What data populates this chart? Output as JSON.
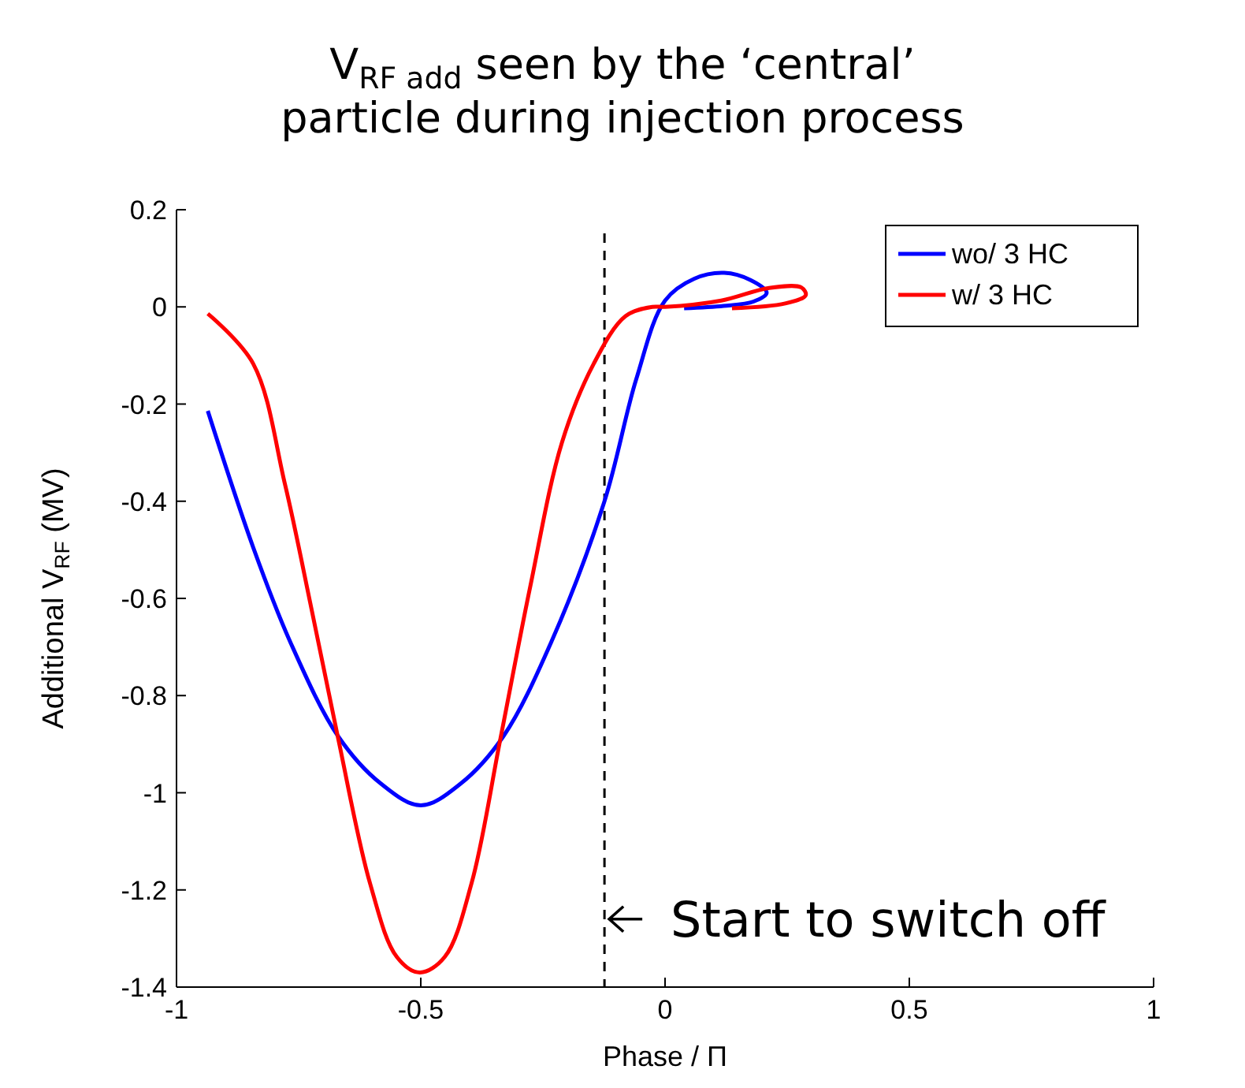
{
  "chart_data": {
    "type": "line",
    "title": "V$_{RF add}$ seen by the ‘central’\nparticle during injection process",
    "xlabel": "Phase / Π",
    "ylabel": "Additional V$_{RF}$ (MV)",
    "xlim": [
      -1,
      1
    ],
    "xticks": [
      -1,
      -0.5,
      0,
      0.5,
      1
    ],
    "ylim": [
      -1.4,
      0.2
    ],
    "yticks": [
      -1.4,
      -1.2,
      -1,
      -0.8,
      -0.6,
      -0.4,
      -0.2,
      0,
      0.2
    ],
    "series": [
      {
        "name": "wo/ 3 HC",
        "color": "#0000ff",
        "x": [
          -0.936,
          -0.843,
          -0.767,
          -0.669,
          -0.582,
          -0.5,
          -0.418,
          -0.331,
          -0.233,
          -0.124,
          -0.059,
          0,
          0.06,
          0.121,
          0.175,
          0.208,
          0.181,
          0.12,
          0.039
        ],
        "values": [
          -0.214,
          -0.495,
          -0.69,
          -0.884,
          -0.981,
          -1.026,
          -0.981,
          -0.884,
          -0.69,
          -0.4,
          -0.149,
          0.013,
          0.058,
          0.07,
          0.055,
          0.029,
          0.011,
          0.002,
          -0.003
        ]
      },
      {
        "name": "w/ 3 HC",
        "color": "#ff0000",
        "x": [
          -0.936,
          -0.843,
          -0.778,
          -0.723,
          -0.669,
          -0.604,
          -0.549,
          -0.502,
          -0.451,
          -0.396,
          -0.337,
          -0.277,
          -0.211,
          -0.146,
          -0.081,
          -0.026,
          0,
          0.115,
          0.213,
          0.279,
          0.288,
          0.246,
          0.137
        ],
        "values": [
          -0.014,
          -0.117,
          -0.365,
          -0.625,
          -0.889,
          -1.186,
          -1.338,
          -1.37,
          -1.338,
          -1.186,
          -0.889,
          -0.581,
          -0.279,
          -0.117,
          -0.019,
          0,
          0,
          0.013,
          0.039,
          0.04,
          0.024,
          0.007,
          -0.003
        ]
      }
    ],
    "ref_lines": [
      {
        "axis": "x",
        "value": -0.124,
        "color": "#000000",
        "line_style": "dashed"
      }
    ],
    "annotations": [
      {
        "text": "Start to switch off",
        "x": -0.124,
        "y": -1.26
      }
    ],
    "legend": "top right",
    "grid": false
  }
}
